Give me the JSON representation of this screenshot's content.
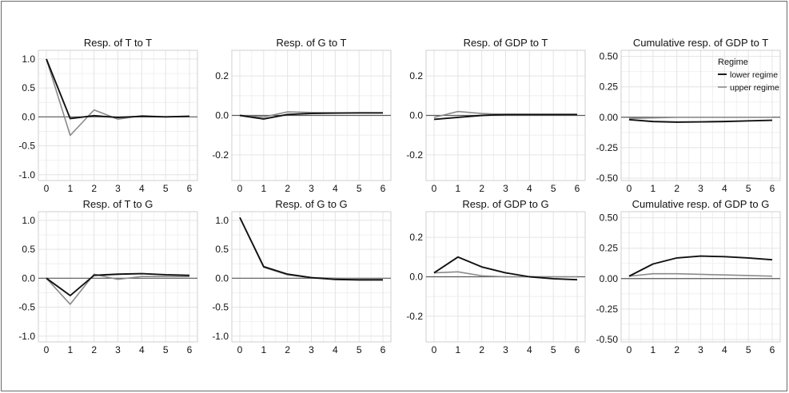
{
  "colors": {
    "lower": "#111111",
    "upper": "#8a8a8a",
    "grid": "#e4e4e4",
    "zero": "#5a5a5a",
    "panel_border": "#cfcfcf"
  },
  "chart_data": [
    {
      "type": "line",
      "title": "Resp. of T to T",
      "x": [
        0,
        1,
        2,
        3,
        4,
        5,
        6
      ],
      "ylim": [
        -1.1,
        1.15
      ],
      "yticks": [
        "1.0",
        "0.5",
        "0.0",
        "-0.5",
        "-1.0"
      ],
      "ytick_values": [
        1.0,
        0.5,
        0.0,
        -0.5,
        -1.0
      ],
      "series": [
        {
          "key": "lower",
          "values": [
            1.0,
            -0.03,
            0.02,
            -0.01,
            0.01,
            0.0,
            0.01
          ]
        },
        {
          "key": "upper",
          "values": [
            1.0,
            -0.32,
            0.12,
            -0.04,
            0.02,
            0.0,
            0.01
          ]
        }
      ]
    },
    {
      "type": "line",
      "title": "Resp. of G to T",
      "x": [
        0,
        1,
        2,
        3,
        4,
        5,
        6
      ],
      "ylim": [
        -0.33,
        0.33
      ],
      "yticks": [
        "0.2",
        "0.0",
        "-0.2"
      ],
      "ytick_values": [
        0.2,
        0.0,
        -0.2
      ],
      "series": [
        {
          "key": "lower",
          "values": [
            0.0,
            -0.018,
            0.005,
            0.01,
            0.012,
            0.013,
            0.013
          ]
        },
        {
          "key": "upper",
          "values": [
            0.0,
            -0.008,
            0.018,
            0.015,
            0.013,
            0.013,
            0.013
          ]
        }
      ]
    },
    {
      "type": "line",
      "title": "Resp. of GDP to T",
      "x": [
        0,
        1,
        2,
        3,
        4,
        5,
        6
      ],
      "ylim": [
        -0.33,
        0.33
      ],
      "yticks": [
        "0.2",
        "0.0",
        "-0.2"
      ],
      "ytick_values": [
        0.2,
        0.0,
        -0.2
      ],
      "series": [
        {
          "key": "lower",
          "values": [
            -0.02,
            -0.01,
            0.0,
            0.005,
            0.005,
            0.005,
            0.005
          ]
        },
        {
          "key": "upper",
          "values": [
            -0.01,
            0.02,
            0.01,
            0.005,
            0.005,
            0.005,
            0.005
          ]
        }
      ]
    },
    {
      "type": "line",
      "title": "Cumulative resp. of GDP to T",
      "x": [
        0,
        1,
        2,
        3,
        4,
        5,
        6
      ],
      "ylim": [
        -0.52,
        0.55
      ],
      "yticks": [
        "0.50",
        "0.25",
        "0.00",
        "-0.25",
        "-0.50"
      ],
      "ytick_values": [
        0.5,
        0.25,
        0.0,
        -0.25,
        -0.5
      ],
      "legend": {
        "title": "Regime",
        "entries": [
          {
            "key": "lower",
            "label": "lower regime"
          },
          {
            "key": "upper",
            "label": "upper regime"
          }
        ],
        "position": "top-right"
      },
      "series": [
        {
          "key": "lower",
          "values": [
            -0.02,
            -0.035,
            -0.04,
            -0.038,
            -0.035,
            -0.03,
            -0.025
          ]
        },
        {
          "key": "upper",
          "values": [
            -0.01,
            -0.005,
            0.0,
            0.0,
            0.0,
            0.0,
            0.0
          ]
        }
      ]
    },
    {
      "type": "line",
      "title": "Resp. of T to G",
      "x": [
        0,
        1,
        2,
        3,
        4,
        5,
        6
      ],
      "ylim": [
        -1.1,
        1.15
      ],
      "yticks": [
        "1.0",
        "0.5",
        "0.0",
        "-0.5",
        "-1.0"
      ],
      "ytick_values": [
        1.0,
        0.5,
        0.0,
        -0.5,
        -1.0
      ],
      "series": [
        {
          "key": "lower",
          "values": [
            0.0,
            -0.3,
            0.05,
            0.07,
            0.08,
            0.06,
            0.05
          ]
        },
        {
          "key": "upper",
          "values": [
            0.0,
            -0.45,
            0.07,
            -0.02,
            0.03,
            0.03,
            0.03
          ]
        }
      ]
    },
    {
      "type": "line",
      "title": "Resp. of G to G",
      "x": [
        0,
        1,
        2,
        3,
        4,
        5,
        6
      ],
      "ylim": [
        -1.1,
        1.15
      ],
      "yticks": [
        "1.0",
        "0.5",
        "0.0",
        "-0.5",
        "-1.0"
      ],
      "ytick_values": [
        1.0,
        0.5,
        0.0,
        -0.5,
        -1.0
      ],
      "series": [
        {
          "key": "lower",
          "values": [
            1.05,
            0.2,
            0.07,
            0.01,
            -0.02,
            -0.03,
            -0.03
          ]
        },
        {
          "key": "upper",
          "values": [
            1.05,
            0.19,
            0.06,
            0.01,
            0.0,
            -0.01,
            -0.01
          ]
        }
      ]
    },
    {
      "type": "line",
      "title": "Resp. of GDP to G",
      "x": [
        0,
        1,
        2,
        3,
        4,
        5,
        6
      ],
      "ylim": [
        -0.33,
        0.33
      ],
      "yticks": [
        "0.2",
        "0.0",
        "-0.2"
      ],
      "ytick_values": [
        0.2,
        0.0,
        -0.2
      ],
      "series": [
        {
          "key": "lower",
          "values": [
            0.02,
            0.1,
            0.05,
            0.02,
            0.0,
            -0.01,
            -0.015
          ]
        },
        {
          "key": "upper",
          "values": [
            0.02,
            0.025,
            0.005,
            0.0,
            0.0,
            0.0,
            0.0
          ]
        }
      ]
    },
    {
      "type": "line",
      "title": "Cumulative resp. of GDP to G",
      "x": [
        0,
        1,
        2,
        3,
        4,
        5,
        6
      ],
      "ylim": [
        -0.52,
        0.55
      ],
      "yticks": [
        "0.50",
        "0.25",
        "0.00",
        "-0.25",
        "-0.50"
      ],
      "ytick_values": [
        0.5,
        0.25,
        0.0,
        -0.25,
        -0.5
      ],
      "series": [
        {
          "key": "lower",
          "values": [
            0.02,
            0.12,
            0.17,
            0.185,
            0.18,
            0.17,
            0.155
          ]
        },
        {
          "key": "upper",
          "values": [
            0.02,
            0.04,
            0.04,
            0.035,
            0.03,
            0.025,
            0.02
          ]
        }
      ]
    }
  ]
}
